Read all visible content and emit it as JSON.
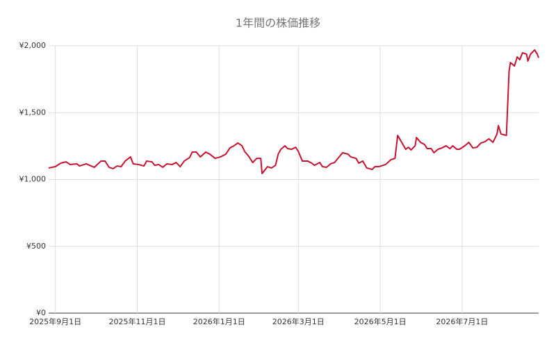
{
  "chart_data": {
    "type": "line",
    "title": "1年間の株価推移",
    "x": [
      "2025-08-27",
      "2025-09-01",
      "2025-09-05",
      "2025-09-09",
      "2025-09-12",
      "2025-09-17",
      "2025-09-19",
      "2025-09-24",
      "2025-09-30",
      "2025-10-05",
      "2025-10-08",
      "2025-10-11",
      "2025-10-14",
      "2025-10-17",
      "2025-10-20",
      "2025-10-23",
      "2025-10-27",
      "2025-10-29",
      "2025-11-02",
      "2025-11-06",
      "2025-11-08",
      "2025-11-12",
      "2025-11-14",
      "2025-11-17",
      "2025-11-20",
      "2025-11-23",
      "2025-11-27",
      "2025-11-30",
      "2025-12-03",
      "2025-12-06",
      "2025-12-10",
      "2025-12-12",
      "2025-12-15",
      "2025-12-18",
      "2025-12-22",
      "2025-12-25",
      "2025-12-29",
      "2026-01-02",
      "2026-01-06",
      "2026-01-09",
      "2026-01-12",
      "2026-01-15",
      "2026-01-18",
      "2026-01-20",
      "2026-01-23",
      "2026-01-26",
      "2026-01-29",
      "2026-02-01",
      "2026-02-02",
      "2026-02-06",
      "2026-02-09",
      "2026-02-12",
      "2026-02-14",
      "2026-02-16",
      "2026-02-19",
      "2026-02-21",
      "2026-02-24",
      "2026-02-27",
      "2026-03-01",
      "2026-03-04",
      "2026-03-08",
      "2026-03-11",
      "2026-03-13",
      "2026-03-17",
      "2026-03-19",
      "2026-03-22",
      "2026-03-25",
      "2026-03-28",
      "2026-03-31",
      "2026-04-03",
      "2026-04-07",
      "2026-04-09",
      "2026-04-13",
      "2026-04-15",
      "2026-04-18",
      "2026-04-21",
      "2026-04-25",
      "2026-04-27",
      "2026-04-30",
      "2026-05-05",
      "2026-05-09",
      "2026-05-12",
      "2026-05-14",
      "2026-05-17",
      "2026-05-20",
      "2026-05-22",
      "2026-05-24",
      "2026-05-27",
      "2026-05-28",
      "2026-05-31",
      "2026-06-03",
      "2026-06-05",
      "2026-06-08",
      "2026-06-10",
      "2026-06-13",
      "2026-06-16",
      "2026-06-19",
      "2026-06-22",
      "2026-06-24",
      "2026-06-27",
      "2026-06-29",
      "2026-07-03",
      "2026-07-06",
      "2026-07-09",
      "2026-07-12",
      "2026-07-15",
      "2026-07-18",
      "2026-07-21",
      "2026-07-24",
      "2026-07-27",
      "2026-07-28",
      "2026-07-30",
      "2026-08-03",
      "2026-08-05",
      "2026-08-06",
      "2026-08-09",
      "2026-08-11",
      "2026-08-13",
      "2026-08-15",
      "2026-08-18",
      "2026-08-19",
      "2026-08-21",
      "2026-08-24",
      "2026-08-26",
      "2026-08-27"
    ],
    "series": [
      {
        "color": "#c4122f",
        "values": [
          1086,
          1096,
          1122,
          1132,
          1112,
          1117,
          1101,
          1117,
          1091,
          1138,
          1138,
          1091,
          1081,
          1101,
          1096,
          1138,
          1169,
          1117,
          1112,
          1101,
          1138,
          1132,
          1106,
          1112,
          1091,
          1117,
          1112,
          1127,
          1096,
          1138,
          1164,
          1205,
          1205,
          1169,
          1205,
          1190,
          1158,
          1169,
          1190,
          1236,
          1252,
          1273,
          1252,
          1210,
          1174,
          1127,
          1158,
          1158,
          1044,
          1096,
          1086,
          1106,
          1190,
          1226,
          1252,
          1231,
          1226,
          1241,
          1210,
          1138,
          1138,
          1122,
          1106,
          1127,
          1096,
          1091,
          1117,
          1127,
          1164,
          1200,
          1190,
          1169,
          1158,
          1122,
          1138,
          1086,
          1075,
          1096,
          1096,
          1112,
          1148,
          1158,
          1330,
          1278,
          1226,
          1241,
          1221,
          1252,
          1314,
          1278,
          1262,
          1231,
          1231,
          1200,
          1226,
          1236,
          1252,
          1231,
          1252,
          1226,
          1226,
          1252,
          1278,
          1236,
          1241,
          1273,
          1283,
          1304,
          1278,
          1340,
          1403,
          1340,
          1330,
          1813,
          1875,
          1849,
          1917,
          1896,
          1948,
          1938,
          1886,
          1938,
          1969,
          1938,
          1910
        ]
      }
    ],
    "xlim": [
      "2025-08-27",
      "2026-08-27"
    ],
    "xticks": [
      {
        "value": "2025-09-01",
        "label": "2025年9月1日"
      },
      {
        "value": "2025-11-01",
        "label": "2025年11月1日"
      },
      {
        "value": "2026-01-01",
        "label": "2026年1月1日"
      },
      {
        "value": "2026-03-01",
        "label": "2026年3月1日"
      },
      {
        "value": "2026-05-01",
        "label": "2026年5月1日"
      },
      {
        "value": "2026-07-01",
        "label": "2026年7月1日"
      }
    ],
    "ylim": [
      0,
      2000
    ],
    "yticks": [
      {
        "value": 0,
        "label": "¥0"
      },
      {
        "value": 500,
        "label": "¥500"
      },
      {
        "value": 1000,
        "label": "¥1,000"
      },
      {
        "value": 1500,
        "label": "¥1,500"
      },
      {
        "value": 2000,
        "label": "¥2,000"
      }
    ],
    "grid": true
  }
}
